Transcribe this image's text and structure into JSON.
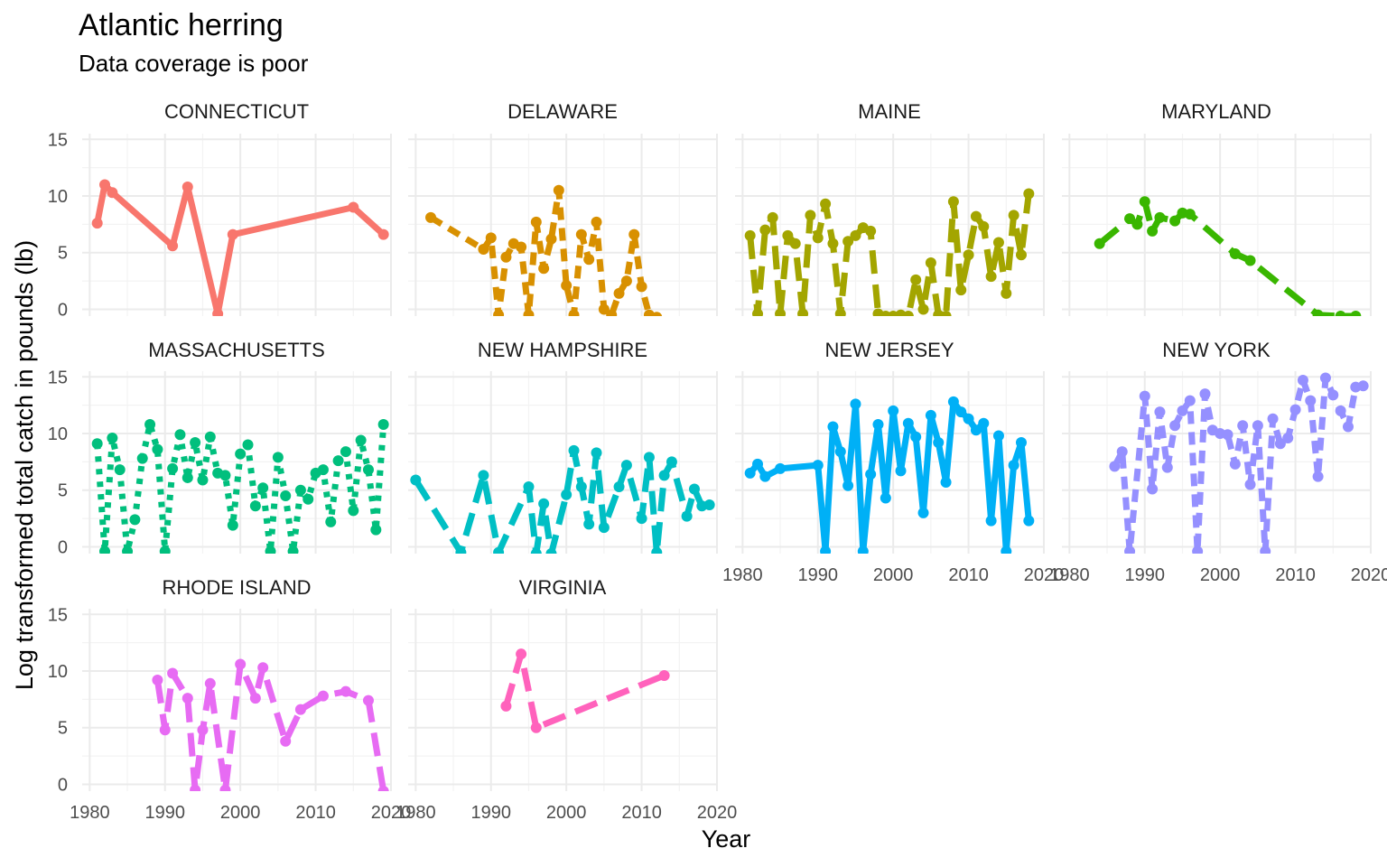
{
  "chart_data": {
    "type": "line",
    "title": "Atlantic herring",
    "subtitle": "Data coverage is poor",
    "xlabel": "Year",
    "ylabel": "Log transformed  total catch in pounds (lb)",
    "xlim": [
      1979,
      2020
    ],
    "ylim": [
      -0.6,
      15.5
    ],
    "x_ticks": [
      1980,
      1990,
      2000,
      2010,
      2020
    ],
    "y_ticks": [
      0,
      5,
      10,
      15
    ],
    "grid": true,
    "legend": "none",
    "facets": [
      {
        "name": "CONNECTICUT",
        "color": "#F8766D",
        "dash": "solid",
        "x": [
          1981,
          1982,
          1983,
          1991,
          1993,
          1997,
          1999,
          2015,
          2019
        ],
        "y": [
          7.6,
          11.0,
          10.3,
          5.6,
          10.8,
          -0.4,
          6.6,
          9.0,
          6.6
        ]
      },
      {
        "name": "DELAWARE",
        "color": "#D89000",
        "dash": "dashed",
        "x": [
          1982,
          1989,
          1990,
          1991,
          1992,
          1993,
          1994,
          1995,
          1996,
          1997,
          1998,
          1999,
          2000,
          2001,
          2002,
          2003,
          2004,
          2005,
          2006,
          2007,
          2008,
          2009,
          2010,
          2011,
          2012
        ],
        "y": [
          8.1,
          5.3,
          6.3,
          -0.5,
          4.6,
          5.8,
          5.5,
          -0.5,
          7.7,
          3.6,
          6.2,
          10.5,
          2.1,
          -0.5,
          6.6,
          4.4,
          7.7,
          0.0,
          -0.5,
          1.4,
          2.5,
          6.6,
          2.0,
          -0.5,
          -0.7
        ]
      },
      {
        "name": "MAINE",
        "color": "#A3A500",
        "dash": "longdash",
        "x": [
          1981,
          1982,
          1983,
          1984,
          1985,
          1986,
          1987,
          1988,
          1989,
          1990,
          1991,
          1992,
          1993,
          1994,
          1995,
          1996,
          1997,
          1998,
          1999,
          2000,
          2001,
          2002,
          2003,
          2004,
          2005,
          2006,
          2007,
          2008,
          2009,
          2010,
          2011,
          2012,
          2013,
          2014,
          2015,
          2016,
          2017,
          2018
        ],
        "y": [
          6.5,
          -0.4,
          7.0,
          8.1,
          -0.4,
          6.5,
          5.8,
          -0.4,
          8.3,
          6.3,
          9.3,
          5.8,
          -0.4,
          6.0,
          6.5,
          7.2,
          6.9,
          -0.4,
          -0.6,
          -0.6,
          -0.5,
          -0.6,
          2.6,
          0.0,
          4.1,
          -0.5,
          -0.6,
          9.5,
          1.7,
          4.8,
          8.2,
          7.3,
          2.9,
          5.9,
          1.4,
          8.3,
          4.8,
          10.2
        ]
      },
      {
        "name": "MARYLAND",
        "color": "#39B600",
        "dash": "longdash",
        "x": [
          1984,
          1988,
          1989,
          1990,
          1991,
          1992,
          1994,
          1995,
          1996,
          2002,
          2004,
          2013,
          2016,
          2018
        ],
        "y": [
          5.8,
          8.0,
          7.5,
          9.5,
          6.9,
          8.1,
          7.8,
          8.5,
          8.4,
          4.9,
          4.3,
          -0.5,
          -0.6,
          -0.6
        ]
      },
      {
        "name": "MASSACHUSETTS",
        "color": "#00BF7D",
        "dash": "dotted",
        "x": [
          1981,
          1982,
          1983,
          1984,
          1985,
          1986,
          1987,
          1988,
          1989,
          1990,
          1991,
          1992,
          1993,
          1994,
          1995,
          1996,
          1997,
          1998,
          1999,
          2000,
          2001,
          2002,
          2003,
          2004,
          2005,
          2006,
          2007,
          2008,
          2009,
          2010,
          2011,
          2012,
          2013,
          2014,
          2015,
          2016,
          2017,
          2018,
          2019
        ],
        "y": [
          9.1,
          -0.4,
          9.6,
          6.8,
          -0.4,
          2.4,
          7.8,
          10.8,
          8.6,
          -0.4,
          6.9,
          9.9,
          6.1,
          9.2,
          5.9,
          9.7,
          6.5,
          6.3,
          1.9,
          8.2,
          9.0,
          3.6,
          5.2,
          -0.4,
          7.9,
          4.5,
          -0.4,
          5.0,
          4.2,
          6.5,
          6.8,
          2.2,
          7.6,
          8.4,
          3.2,
          9.4,
          6.8,
          1.5,
          10.8
        ]
      },
      {
        "name": "NEW HAMPSHIRE",
        "color": "#00BFC4",
        "dash": "longdash",
        "x": [
          1980,
          1986,
          1989,
          1991,
          1995,
          1996,
          1997,
          1998,
          2000,
          2001,
          2002,
          2003,
          2004,
          2005,
          2007,
          2008,
          2010,
          2011,
          2012,
          2013,
          2014,
          2016,
          2017,
          2018,
          2019
        ],
        "y": [
          5.9,
          -0.5,
          6.3,
          -0.5,
          5.3,
          -0.6,
          3.8,
          -0.6,
          4.6,
          8.5,
          5.3,
          2.0,
          8.3,
          1.7,
          5.3,
          7.2,
          2.5,
          7.9,
          -0.5,
          6.3,
          7.5,
          2.7,
          5.1,
          3.6,
          3.7
        ]
      },
      {
        "name": "NEW JERSEY",
        "color": "#00B0F6",
        "dash": "solid",
        "x": [
          1981,
          1982,
          1983,
          1985,
          1990,
          1991,
          1992,
          1993,
          1994,
          1995,
          1996,
          1997,
          1998,
          1999,
          2000,
          2001,
          2002,
          2003,
          2004,
          2005,
          2006,
          2007,
          2008,
          2009,
          2010,
          2011,
          2012,
          2013,
          2014,
          2015,
          2016,
          2017,
          2018
        ],
        "y": [
          6.5,
          7.3,
          6.2,
          6.9,
          7.2,
          -0.4,
          10.6,
          8.4,
          5.4,
          12.6,
          -0.4,
          6.4,
          10.8,
          4.3,
          12.0,
          6.7,
          10.9,
          9.7,
          3.0,
          11.6,
          9.2,
          5.7,
          12.8,
          11.9,
          11.3,
          10.3,
          10.9,
          2.3,
          9.8,
          -0.4,
          7.2,
          9.2,
          2.3
        ]
      },
      {
        "name": "NEW YORK",
        "color": "#9590FF",
        "dash": "dashed",
        "x": [
          1986,
          1987,
          1988,
          1990,
          1991,
          1992,
          1993,
          1994,
          1995,
          1996,
          1997,
          1998,
          1999,
          2000,
          2001,
          2002,
          2003,
          2004,
          2005,
          2006,
          2007,
          2008,
          2009,
          2010,
          2011,
          2012,
          2013,
          2014,
          2015,
          2016,
          2017,
          2018,
          2019
        ],
        "y": [
          7.1,
          8.4,
          -0.4,
          13.3,
          5.1,
          11.9,
          7.0,
          10.7,
          12.0,
          12.9,
          -0.4,
          13.5,
          10.3,
          10.0,
          9.9,
          7.3,
          10.7,
          5.5,
          10.7,
          -0.4,
          11.3,
          9.1,
          9.6,
          12.1,
          14.7,
          12.9,
          6.2,
          14.9,
          13.4,
          12.0,
          10.6,
          14.1,
          14.2
        ]
      },
      {
        "name": "RHODE ISLAND",
        "color": "#E76BF3",
        "dash": "longdash",
        "x": [
          1989,
          1990,
          1991,
          1993,
          1994,
          1995,
          1996,
          1998,
          2000,
          2002,
          2003,
          2006,
          2008,
          2011,
          2014,
          2017,
          2019
        ],
        "y": [
          9.2,
          4.8,
          9.8,
          7.6,
          -0.5,
          4.8,
          8.9,
          -0.5,
          10.6,
          7.6,
          10.3,
          3.8,
          6.6,
          7.8,
          8.2,
          7.4,
          -0.6
        ]
      },
      {
        "name": "VIRGINIA",
        "color": "#FF62BC",
        "dash": "longdash",
        "x": [
          1992,
          1994,
          1996,
          2013
        ],
        "y": [
          6.9,
          11.5,
          5.0,
          9.6
        ]
      }
    ]
  }
}
